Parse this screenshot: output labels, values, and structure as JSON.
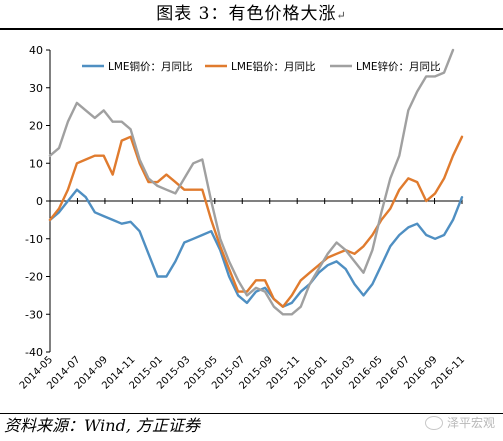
{
  "header": {
    "title": "图表 3：有色价格大涨",
    "mark": "↵"
  },
  "footer": {
    "source": "资料来源：Wind, 方正证券",
    "watermark": "泽平宏观"
  },
  "chart_data": {
    "type": "line",
    "title": "",
    "xlabel": "",
    "ylabel": "",
    "ylim": [
      -40,
      40
    ],
    "yticks": [
      -40,
      -30,
      -20,
      -10,
      0,
      10,
      20,
      30,
      40
    ],
    "grid": false,
    "legend_position": "top",
    "x_tick_labels": [
      "2014-05",
      "2014-07",
      "2014-09",
      "2014-11",
      "2015-01",
      "2015-03",
      "2015-05",
      "2015-07",
      "2015-09",
      "2015-11",
      "2016-01",
      "2016-03",
      "2016-05",
      "2016-07",
      "2016-09",
      "2016-11"
    ],
    "x_start": "2014-05",
    "x_end": "2016-11",
    "series": [
      {
        "name": "LME铜价：月同比",
        "color": "#4f8fc2",
        "values": [
          [
            0,
            -5
          ],
          [
            1,
            -3
          ],
          [
            2,
            0
          ],
          [
            3,
            3
          ],
          [
            4,
            1
          ],
          [
            5,
            -3
          ],
          [
            6,
            -4
          ],
          [
            7,
            -5
          ],
          [
            8,
            -6
          ],
          [
            9,
            -5.5
          ],
          [
            10,
            -8
          ],
          [
            11,
            -14
          ],
          [
            12,
            -20
          ],
          [
            13,
            -20
          ],
          [
            14,
            -16
          ],
          [
            15,
            -11
          ],
          [
            16,
            -10
          ],
          [
            17,
            -9
          ],
          [
            18,
            -8
          ],
          [
            19,
            -13
          ],
          [
            20,
            -20
          ],
          [
            21,
            -25
          ],
          [
            22,
            -27
          ],
          [
            23,
            -24
          ],
          [
            24,
            -23
          ],
          [
            25,
            -26
          ],
          [
            26,
            -28
          ],
          [
            27,
            -27
          ],
          [
            28,
            -24
          ],
          [
            29,
            -22
          ],
          [
            30,
            -19
          ],
          [
            31,
            -17
          ],
          [
            32,
            -16
          ],
          [
            33,
            -18
          ],
          [
            34,
            -22
          ],
          [
            35,
            -25
          ],
          [
            36,
            -22
          ],
          [
            37,
            -17
          ],
          [
            38,
            -12
          ],
          [
            39,
            -9
          ],
          [
            40,
            -7
          ],
          [
            41,
            -6
          ],
          [
            42,
            -9
          ],
          [
            43,
            -10
          ],
          [
            44,
            -9
          ],
          [
            45,
            -5
          ],
          [
            46,
            1
          ]
        ]
      },
      {
        "name": "LME铝价：月同比",
        "color": "#e07b2e",
        "values": [
          [
            0,
            -5
          ],
          [
            1,
            -2
          ],
          [
            2,
            3
          ],
          [
            3,
            10
          ],
          [
            4,
            11
          ],
          [
            5,
            12
          ],
          [
            6,
            12
          ],
          [
            7,
            7
          ],
          [
            8,
            16
          ],
          [
            9,
            17
          ],
          [
            10,
            10
          ],
          [
            11,
            5
          ],
          [
            12,
            5
          ],
          [
            13,
            7
          ],
          [
            14,
            5
          ],
          [
            15,
            3
          ],
          [
            16,
            3
          ],
          [
            17,
            3
          ],
          [
            18,
            -5
          ],
          [
            19,
            -12
          ],
          [
            20,
            -18
          ],
          [
            21,
            -24
          ],
          [
            22,
            -24
          ],
          [
            23,
            -21
          ],
          [
            24,
            -21
          ],
          [
            25,
            -26
          ],
          [
            26,
            -28
          ],
          [
            27,
            -25
          ],
          [
            28,
            -21
          ],
          [
            29,
            -19
          ],
          [
            30,
            -17
          ],
          [
            31,
            -15
          ],
          [
            32,
            -14
          ],
          [
            33,
            -13
          ],
          [
            34,
            -14
          ],
          [
            35,
            -12
          ],
          [
            36,
            -9
          ],
          [
            37,
            -5
          ],
          [
            38,
            -2
          ],
          [
            39,
            3
          ],
          [
            40,
            6
          ],
          [
            41,
            5
          ],
          [
            42,
            0
          ],
          [
            43,
            2
          ],
          [
            44,
            6
          ],
          [
            45,
            12
          ],
          [
            46,
            17
          ]
        ]
      },
      {
        "name": "LME锌价：月同比",
        "color": "#a0a0a0",
        "values": [
          [
            0,
            12
          ],
          [
            1,
            14
          ],
          [
            2,
            21
          ],
          [
            3,
            26
          ],
          [
            4,
            24
          ],
          [
            5,
            22
          ],
          [
            6,
            24
          ],
          [
            7,
            21
          ],
          [
            8,
            21
          ],
          [
            9,
            19
          ],
          [
            10,
            11
          ],
          [
            11,
            6
          ],
          [
            12,
            4
          ],
          [
            13,
            3
          ],
          [
            14,
            2
          ],
          [
            15,
            6
          ],
          [
            16,
            10
          ],
          [
            17,
            11
          ],
          [
            18,
            0
          ],
          [
            19,
            -10
          ],
          [
            20,
            -16
          ],
          [
            21,
            -21
          ],
          [
            22,
            -25
          ],
          [
            23,
            -23
          ],
          [
            24,
            -24
          ],
          [
            25,
            -28
          ],
          [
            26,
            -30
          ],
          [
            27,
            -30
          ],
          [
            28,
            -28
          ],
          [
            29,
            -22
          ],
          [
            30,
            -18
          ],
          [
            31,
            -14
          ],
          [
            32,
            -11
          ],
          [
            33,
            -13
          ],
          [
            34,
            -16
          ],
          [
            35,
            -19
          ],
          [
            36,
            -13
          ],
          [
            37,
            -3
          ],
          [
            38,
            6
          ],
          [
            39,
            12
          ],
          [
            40,
            24
          ],
          [
            41,
            29
          ],
          [
            42,
            33
          ],
          [
            43,
            33
          ],
          [
            44,
            34
          ],
          [
            45,
            40
          ]
        ]
      }
    ]
  }
}
